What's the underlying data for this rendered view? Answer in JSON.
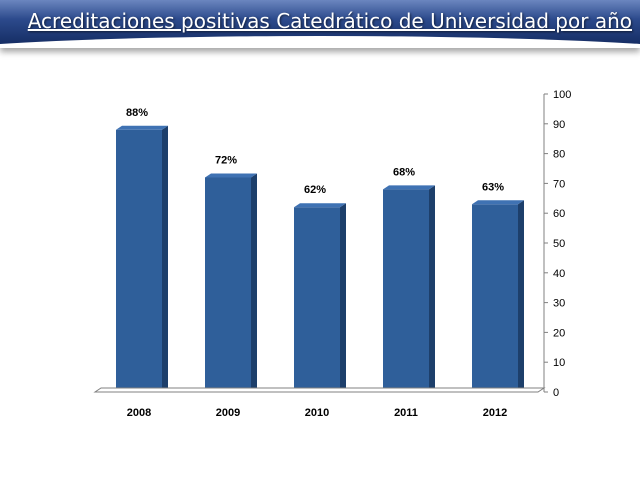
{
  "header": {
    "title": "Acreditaciones positivas Catedrático de Universidad por año"
  },
  "colors": {
    "bar_front": "#2f5f9a",
    "bar_side": "#1d3f6b",
    "bar_top": "#3f72b3",
    "axis": "#808080"
  },
  "chart_data": {
    "type": "bar",
    "title": "Acreditaciones positivas Catedrático de Universidad por año",
    "categories": [
      "2008",
      "2009",
      "2010",
      "2011",
      "2012"
    ],
    "values": [
      88,
      72,
      62,
      68,
      63
    ],
    "data_labels": [
      "88%",
      "72%",
      "62%",
      "68%",
      "63%"
    ],
    "ylim": [
      0,
      100
    ],
    "yticks": [
      0,
      10,
      20,
      30,
      40,
      50,
      60,
      70,
      80,
      90,
      100
    ],
    "yaxis_position": "right",
    "grid": false,
    "legend": "none"
  }
}
